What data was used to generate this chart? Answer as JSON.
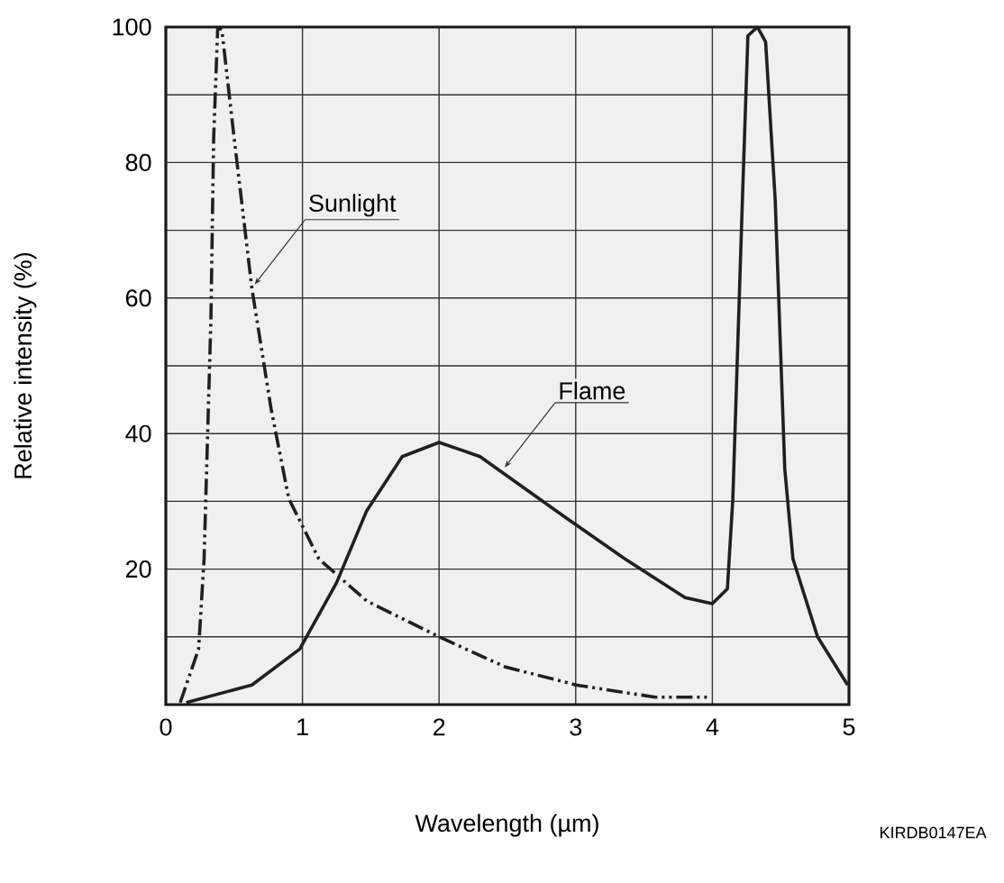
{
  "chart_data": {
    "type": "line",
    "xlabel": "Wavelength (µm)",
    "ylabel": "Relative intensity (%)",
    "xlim": [
      0,
      5
    ],
    "xticks": [
      0,
      1,
      2,
      3,
      4,
      5
    ],
    "ylim": [
      0,
      100
    ],
    "yticks": [
      {
        "value": 10,
        "label": null
      },
      20,
      {
        "value": 30,
        "label": null
      },
      40,
      {
        "value": 50,
        "label": null
      },
      60,
      {
        "value": 70,
        "label": null
      },
      80,
      {
        "value": 90,
        "label": null
      },
      100
    ],
    "grid": true,
    "marker": "none",
    "series": [
      {
        "color": "#231f20",
        "line_style": "dashdotdotted",
        "x": [
          0.105,
          0.24,
          0.28,
          0.33,
          0.35,
          0.38,
          0.41,
          0.5,
          0.63,
          0.77,
          0.9,
          1.12,
          1.47,
          2.0,
          2.48,
          3.0,
          3.58,
          3.97
        ],
        "values": [
          0.3,
          8.2,
          21.5,
          57,
          83.6,
          100,
          99.6,
          83.6,
          61.4,
          43.7,
          30.4,
          21.5,
          15.3,
          10,
          5.6,
          2.9,
          1.1,
          1.1
        ]
      },
      {
        "color": "#231f20",
        "line_style": "solid",
        "x": [
          0.15,
          0.63,
          0.98,
          1.25,
          1.47,
          1.73,
          2.0,
          2.3,
          2.48,
          2.92,
          3.36,
          3.8,
          4.0,
          4.11,
          4.15,
          4.22,
          4.26,
          4.33,
          4.39,
          4.46,
          4.53,
          4.59,
          4.77,
          4.99
        ],
        "values": [
          0.3,
          2.9,
          8.2,
          18,
          28.6,
          36.6,
          38.7,
          36.6,
          34,
          27.7,
          21.5,
          15.8,
          14.9,
          17.1,
          30.4,
          74.5,
          98.7,
          100,
          97.8,
          74.5,
          34.8,
          21.5,
          10,
          2.9
        ]
      }
    ],
    "annotations": [
      {
        "text": "Sunlight",
        "x": 0.65,
        "y": 62
      },
      {
        "text": "Flame",
        "x": 2.48,
        "y": 35
      },
      "KIRDB0147EA"
    ]
  }
}
